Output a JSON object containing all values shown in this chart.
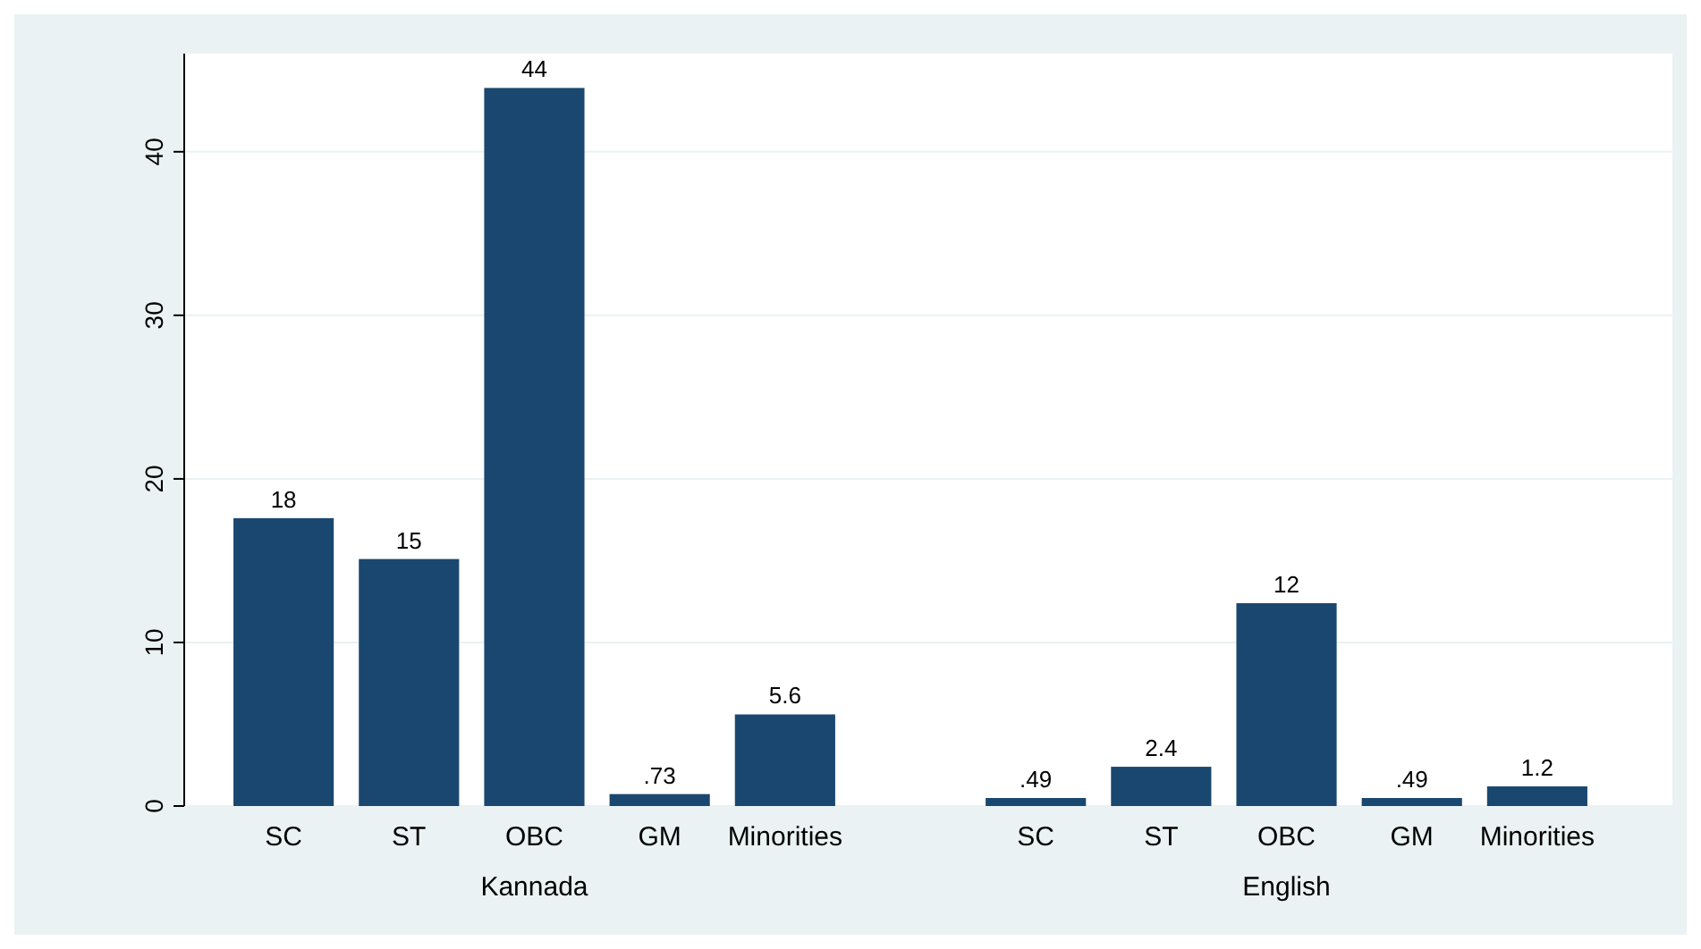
{
  "chart_data": {
    "type": "bar",
    "categories": [
      "SC",
      "ST",
      "OBC",
      "GM",
      "Minorities",
      null,
      "SC",
      "ST",
      "OBC",
      "GM",
      "Minorities"
    ],
    "values": [
      17.6,
      15.1,
      43.9,
      0.73,
      5.6,
      null,
      0.49,
      2.4,
      12.4,
      0.49,
      1.2
    ],
    "value_labels": [
      "18",
      "15",
      "44",
      ".73",
      "5.6",
      null,
      ".49",
      "2.4",
      "12",
      ".49",
      "1.2"
    ],
    "color": "#1a476f",
    "ylim": [
      0,
      46
    ],
    "yticks": [
      0,
      10,
      20,
      30,
      40
    ],
    "grid": "y",
    "annotations": [
      "Kannada",
      "English"
    ]
  }
}
